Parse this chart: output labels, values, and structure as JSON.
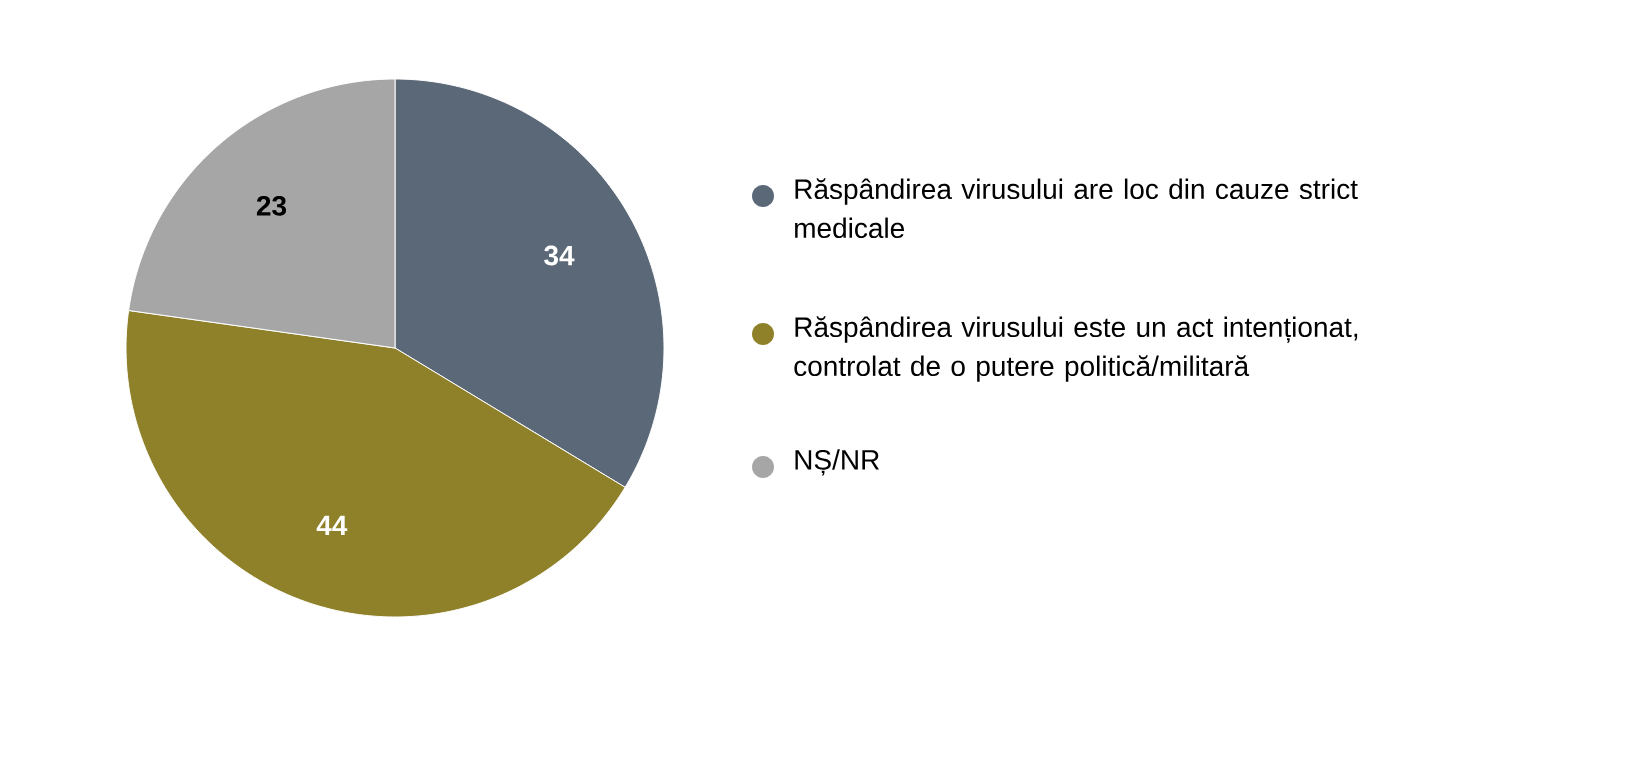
{
  "chart_data": {
    "type": "pie",
    "categories": [
      "Răspândirea virusului are loc din cauze strict medicale",
      "Răspândirea virusului este un act intenționat, controlat de o putere politică/militară",
      "NȘ/NR"
    ],
    "values": [
      34,
      44,
      23
    ],
    "colors": [
      "#5a6878",
      "#8f812a",
      "#a6a6a6"
    ],
    "data_labels": true,
    "legend": "right"
  }
}
